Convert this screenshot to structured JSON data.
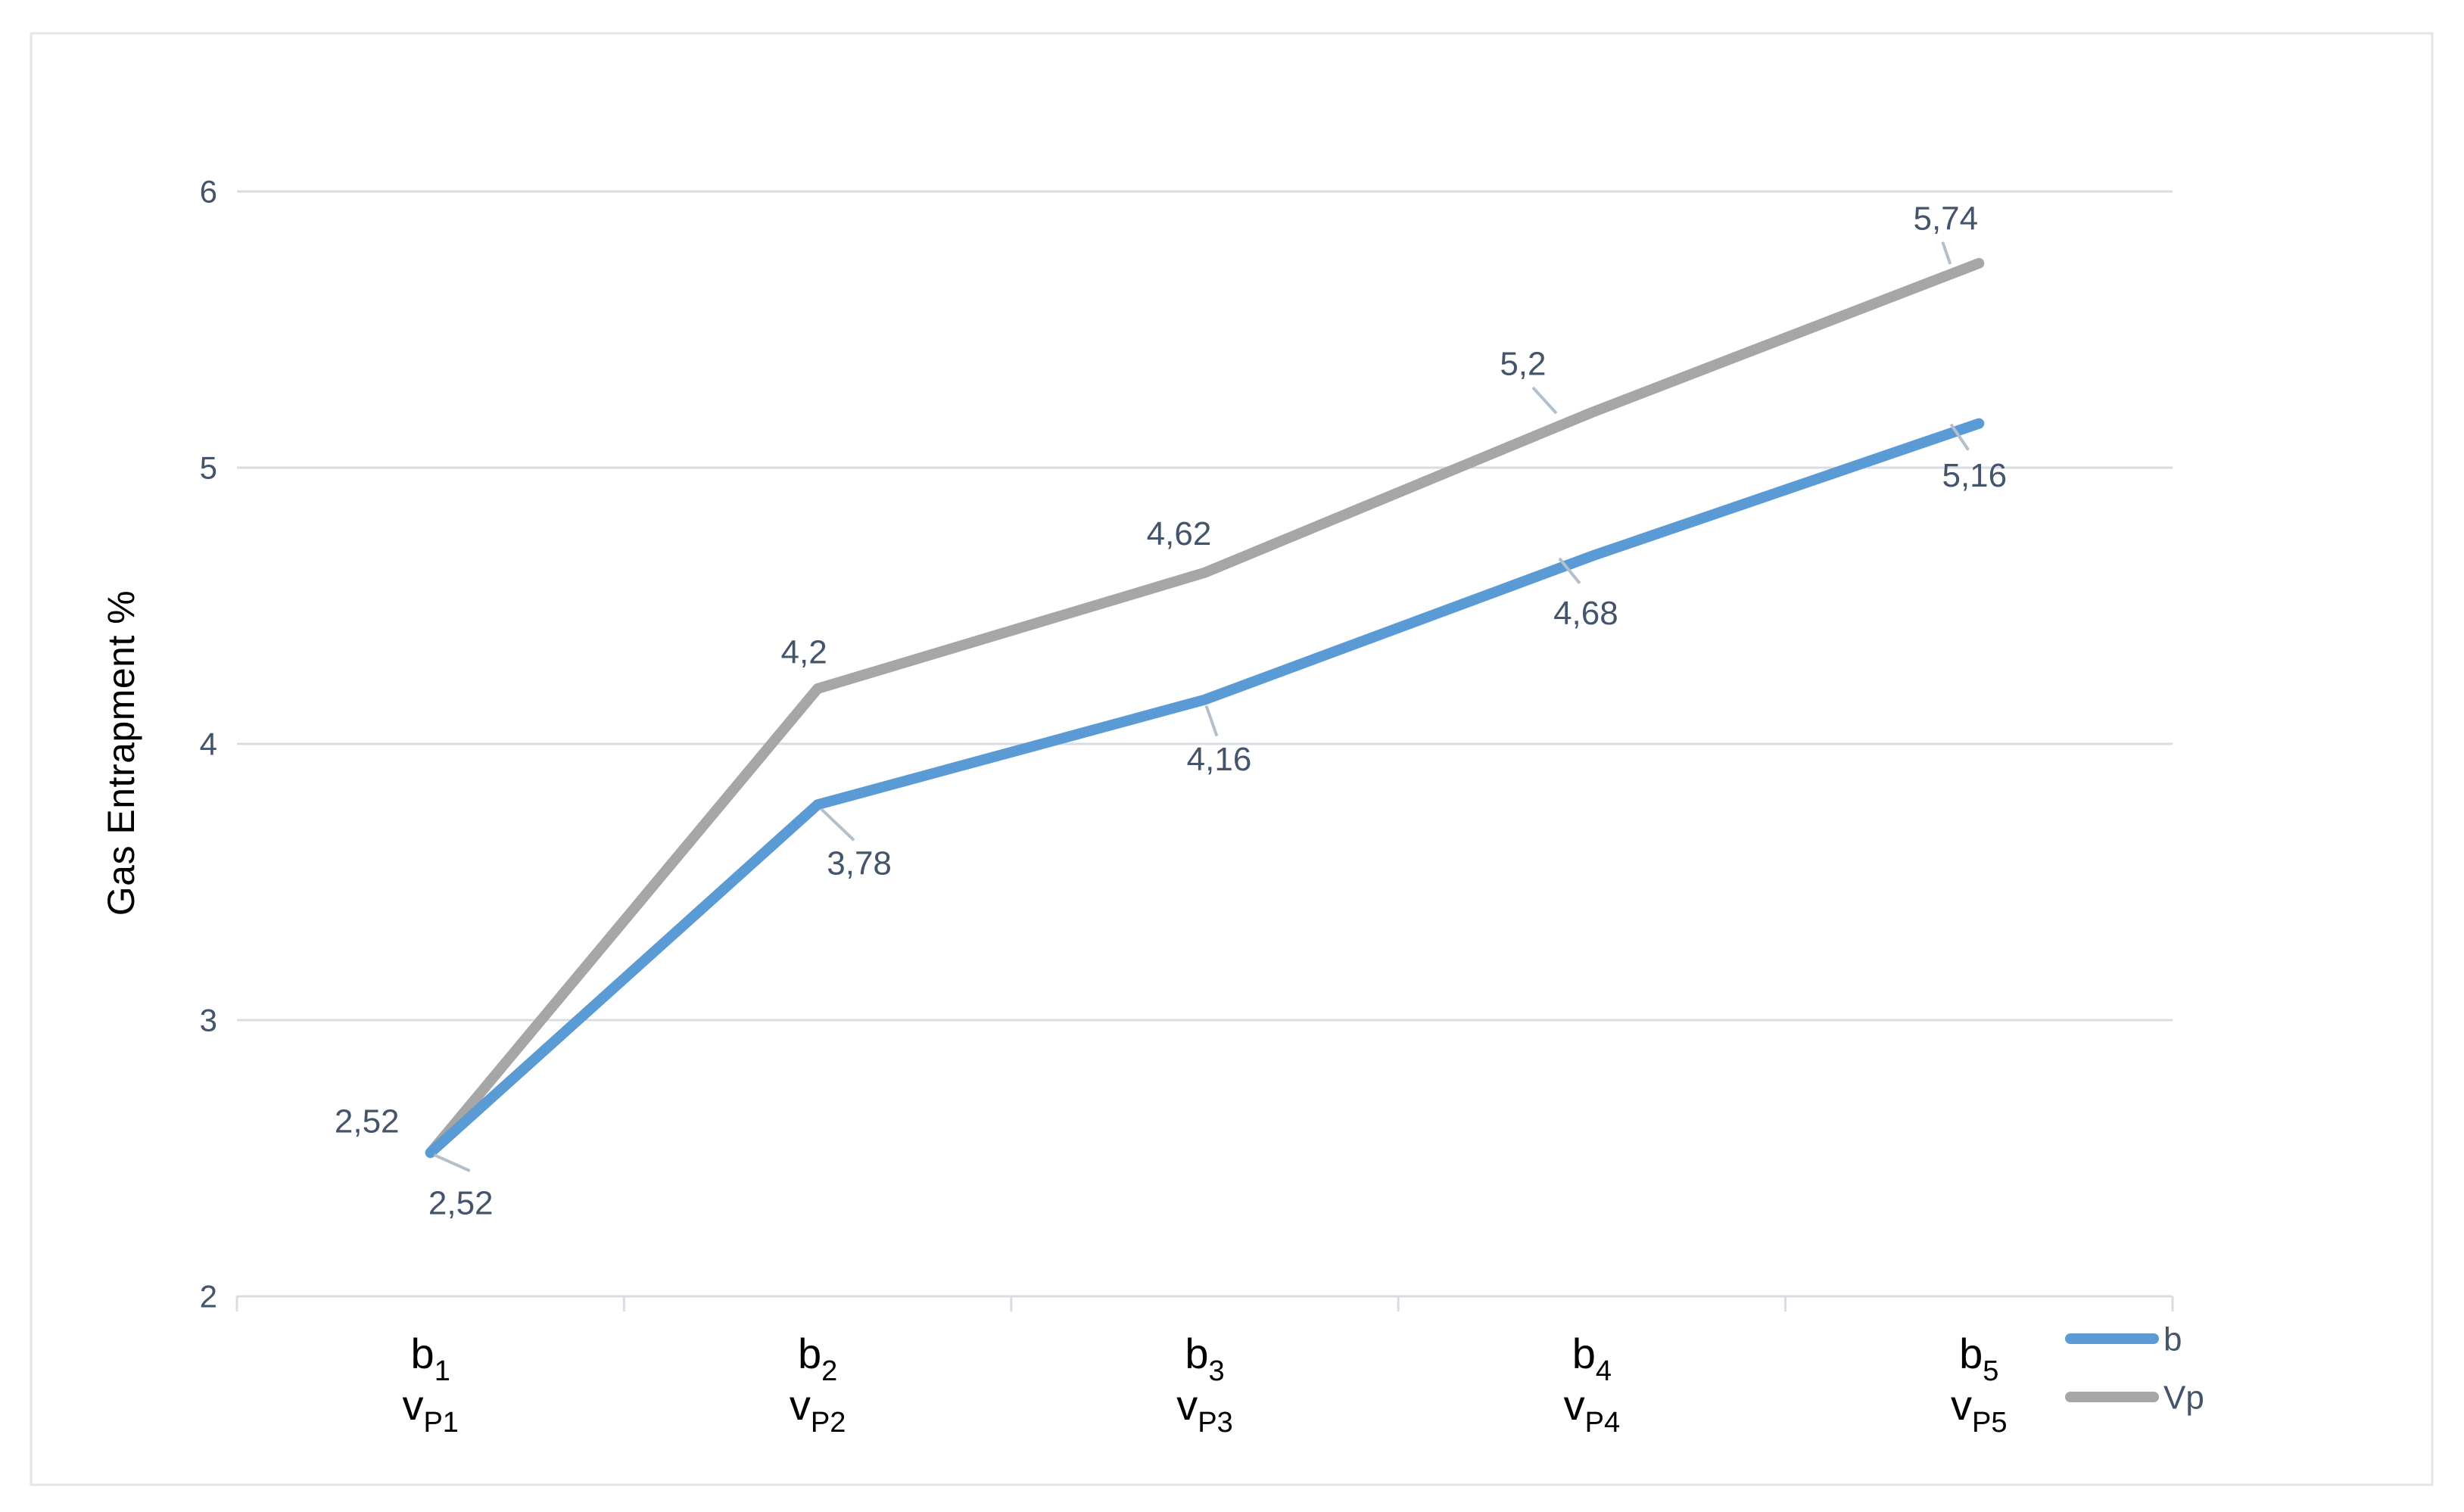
{
  "chart_data": {
    "type": "line",
    "title": "",
    "ylabel": "Gas Entrapment %",
    "x_categories": [
      {
        "line1_base": "b",
        "line1_sub": "1",
        "line2_base": "v",
        "line2_sub": "P1"
      },
      {
        "line1_base": "b",
        "line1_sub": "2",
        "line2_base": "v",
        "line2_sub": "P2"
      },
      {
        "line1_base": "b",
        "line1_sub": "3",
        "line2_base": "v",
        "line2_sub": "P3"
      },
      {
        "line1_base": "b",
        "line1_sub": "4",
        "line2_base": "v",
        "line2_sub": "P4"
      },
      {
        "line1_base": "b",
        "line1_sub": "5",
        "line2_base": "v",
        "line2_sub": "P5"
      }
    ],
    "y_axis": {
      "min": 2,
      "max": 6,
      "step": 1,
      "tick_labels": [
        "2",
        "3",
        "4",
        "5",
        "6"
      ]
    },
    "series": [
      {
        "name": "b",
        "color": "#5B9BD5",
        "values": [
          2.52,
          3.78,
          4.16,
          4.68,
          5.16
        ],
        "data_labels": [
          "2,52",
          "3,78",
          "4,16",
          "4,68",
          "5,16"
        ],
        "label_position": "below"
      },
      {
        "name": "Vp",
        "color": "#A6A6A6",
        "values": [
          2.52,
          4.2,
          4.62,
          5.2,
          5.74
        ],
        "data_labels": [
          "2,52",
          "4,2",
          "4,62",
          "5,2",
          "5,74"
        ],
        "label_position": "above"
      }
    ],
    "legend": {
      "position": "bottom-right",
      "items": [
        {
          "label": "b",
          "color": "#5B9BD5"
        },
        {
          "label": "Vp",
          "color": "#A6A6A6"
        }
      ]
    },
    "grid": true,
    "colors": {
      "label_text": "#44546A",
      "black_text": "#000000",
      "gridline": "#D9DDE3",
      "border": "#E2E5EA",
      "leader_line": "#B4BFCC",
      "background": "#FFFFFF"
    }
  }
}
